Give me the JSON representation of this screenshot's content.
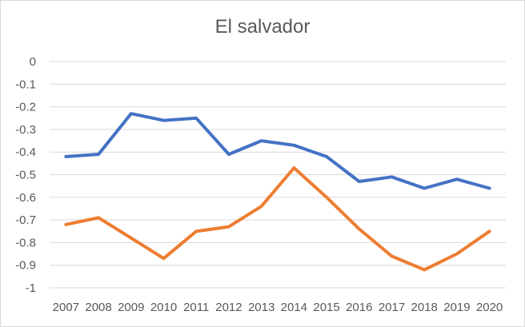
{
  "chart_data": {
    "type": "line",
    "title": "El salvador",
    "xlabel": "",
    "ylabel": "",
    "categories": [
      "2007",
      "2008",
      "2009",
      "2010",
      "2011",
      "2012",
      "2013",
      "2014",
      "2015",
      "2016",
      "2017",
      "2018",
      "2019",
      "2020"
    ],
    "ylim": [
      -1,
      0
    ],
    "yticks": [
      "0",
      "-0.1",
      "-0.2",
      "-0.3",
      "-0.4",
      "-0.5",
      "-0.6",
      "-0.7",
      "-0.8",
      "-0.9",
      "-1"
    ],
    "grid": "horizontal",
    "legend": "none",
    "series": [
      {
        "color": "#4472c4",
        "values": [
          -0.42,
          -0.41,
          -0.23,
          -0.26,
          -0.25,
          -0.41,
          -0.35,
          -0.37,
          -0.42,
          -0.53,
          -0.51,
          -0.56,
          -0.52,
          -0.56
        ]
      },
      {
        "color": "#ed7d31",
        "values": [
          -0.72,
          -0.69,
          -0.78,
          -0.87,
          -0.75,
          -0.73,
          -0.64,
          -0.47,
          -0.6,
          -0.74,
          -0.86,
          -0.92,
          -0.85,
          -0.75
        ]
      }
    ]
  }
}
